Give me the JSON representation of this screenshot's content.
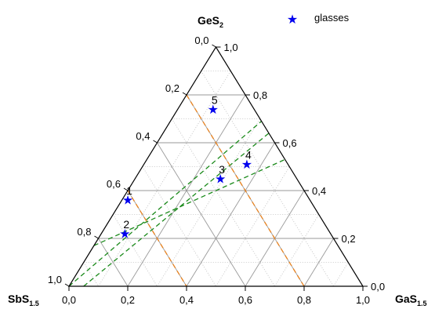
{
  "chart_data": {
    "type": "scatter",
    "subtype": "ternary",
    "vertices": {
      "top": {
        "main": "GeS",
        "sub": "2"
      },
      "left": {
        "main": "SbS",
        "sub": "1.5"
      },
      "right": {
        "main": "GaS",
        "sub": "1.5"
      }
    },
    "ticks": {
      "bottom": [
        "0,0",
        "0,2",
        "0,4",
        "0,6",
        "0,8",
        "1,0"
      ],
      "left": [
        "0,0",
        "0,2",
        "0,4",
        "0,6",
        "0,8",
        "1,0"
      ],
      "right": [
        "0,0",
        "0,2",
        "0,4",
        "0,6",
        "0,8",
        "1,0"
      ]
    },
    "grid": true,
    "legend": {
      "position": "top-right",
      "entries": [
        "glasses"
      ]
    },
    "series": [
      {
        "name": "glasses",
        "color": "#0000ee",
        "marker": "star",
        "points": [
          {
            "label": "1",
            "GeS2": 0.36,
            "GaS1.5": 0.02
          },
          {
            "label": "2",
            "GeS2": 0.22,
            "GaS1.5": 0.08
          },
          {
            "label": "3",
            "GeS2": 0.45,
            "GaS1.5": 0.29
          },
          {
            "label": "4",
            "GeS2": 0.51,
            "GaS1.5": 0.35
          },
          {
            "label": "5",
            "GeS2": 0.74,
            "GaS1.5": 0.12
          }
        ]
      }
    ],
    "guide_lines": [
      {
        "color": "#1a8a1a",
        "style": "dashed",
        "from": {
          "GeS2": 0.0,
          "GaS1.5": 0.0
        },
        "to": {
          "GeS2": 0.69,
          "GaS1.5": 0.31
        }
      },
      {
        "color": "#1a8a1a",
        "style": "dashed",
        "from": {
          "GeS2": 0.0,
          "GaS1.5": 0.05
        },
        "to": {
          "GeS2": 0.64,
          "GaS1.5": 0.36
        }
      },
      {
        "color": "#1a8a1a",
        "style": "dashed",
        "from": {
          "GeS2": 0.17,
          "GaS1.5": 0.0
        },
        "to": {
          "GeS2": 0.53,
          "GaS1.5": 0.47
        }
      },
      {
        "color": "#e8821e",
        "style": "dashed",
        "from": {
          "GeS2": 0.8,
          "GaS1.5": 0.0
        },
        "to": {
          "GeS2": 0.0,
          "GaS1.5": 0.8
        }
      },
      {
        "color": "#e8821e",
        "style": "dashed",
        "from": {
          "GeS2": 0.4,
          "GaS1.5": 0.0
        },
        "to": {
          "GeS2": 0.0,
          "GaS1.5": 0.4
        }
      }
    ]
  }
}
